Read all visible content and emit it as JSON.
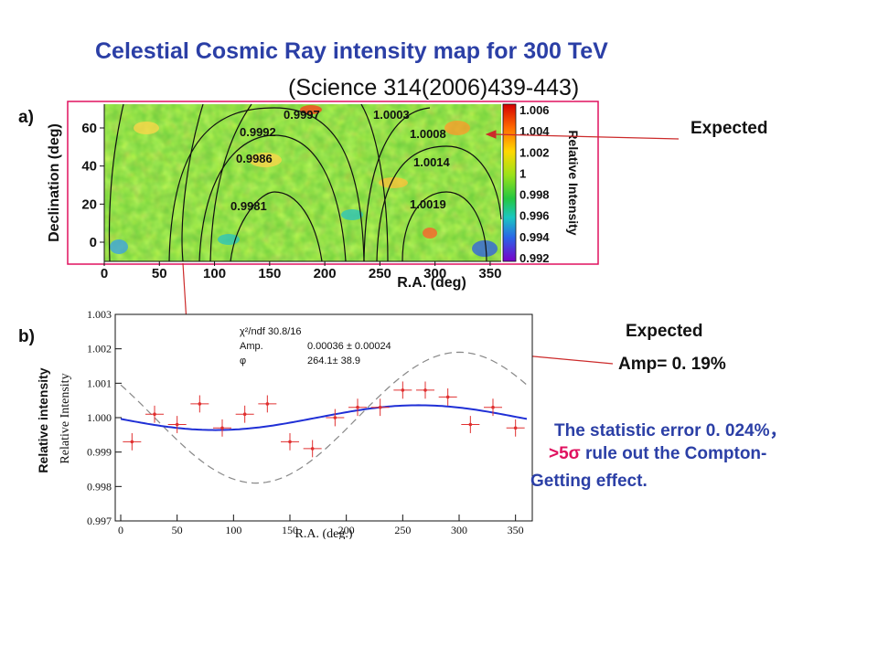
{
  "title": "Celestial Cosmic Ray intensity map for 300 TeV",
  "subtitle": "(Science 314(2006)439-443)",
  "panel_a": {
    "label": "a)",
    "xlabel": "R.A. (deg)",
    "ylabel": "Declination (deg)",
    "x_ticks": [
      "0",
      "50",
      "100",
      "150",
      "200",
      "250",
      "300",
      "350"
    ],
    "y_ticks": [
      "0",
      "20",
      "40",
      "60"
    ],
    "colorbar_label": "Relative Intensity",
    "colorbar_ticks": [
      "1.006",
      "1.004",
      "1.002",
      "1",
      "0.998",
      "0.996",
      "0.994",
      "0.992"
    ],
    "contour_labels": [
      "0.9997",
      "1.0003",
      "0.9992",
      "1.0008",
      "0.9986",
      "1.0014",
      "0.9981",
      "1.0019"
    ]
  },
  "panel_b": {
    "label": "b)",
    "ylabel_outer": "Relative intensity",
    "ylabel_inner": "Relative Intensity",
    "xlabel": "R.A. (deg.)",
    "stats": {
      "chi2": "χ²/ndf  30.8/16",
      "amp_label": "Amp.",
      "amp_value": "0.00036 ± 0.00024",
      "phi_label": "φ",
      "phi_value": "264.1± 38.9"
    }
  },
  "chart_data": {
    "type": "scatter",
    "xlabel": "R.A. (deg.)",
    "ylabel": "Relative Intensity",
    "xlim": [
      0,
      360
    ],
    "ylim": [
      0.997,
      1.003
    ],
    "x_ticks": [
      0,
      50,
      100,
      150,
      200,
      250,
      300,
      350
    ],
    "y_ticks": [
      0.997,
      0.998,
      0.999,
      1.0,
      1.001,
      1.002,
      1.003
    ],
    "series": [
      {
        "x": [
          10,
          30,
          50,
          70,
          90,
          110,
          130,
          150,
          170,
          190,
          210,
          230,
          250,
          270,
          290,
          310,
          330,
          350
        ],
        "values": [
          0.9993,
          1.0001,
          0.9998,
          1.0004,
          0.9997,
          1.0001,
          1.0004,
          0.9993,
          0.9991,
          1.0,
          1.0003,
          1.0003,
          1.0008,
          1.0008,
          1.0006,
          0.9998,
          1.0003,
          0.9997
        ],
        "yerr": 0.00025
      },
      {
        "style": "blue solid sine fit",
        "amplitude": 0.00036,
        "phase": 264.1,
        "offset": 1.0
      },
      {
        "style": "grey dashed expected",
        "amplitude": 0.0019,
        "phase": 300,
        "offset": 1.0
      }
    ]
  },
  "annotations": {
    "expected_top": "Expected",
    "expected_bottom": "Expected",
    "amp_text": "Amp=   0. 19%",
    "stat_line1": "The statistic error 0. 024%，",
    "stat_line2_prefix": ">5σ",
    "stat_line2_rest": " rule out the Compton-",
    "stat_line3": "Getting effect."
  },
  "colors": {
    "title": "#2b3fa6",
    "arrow": "#cc2a2a",
    "fit_line": "#1f2fd6",
    "data_points": "#e03030",
    "frame": "#e0115f"
  }
}
